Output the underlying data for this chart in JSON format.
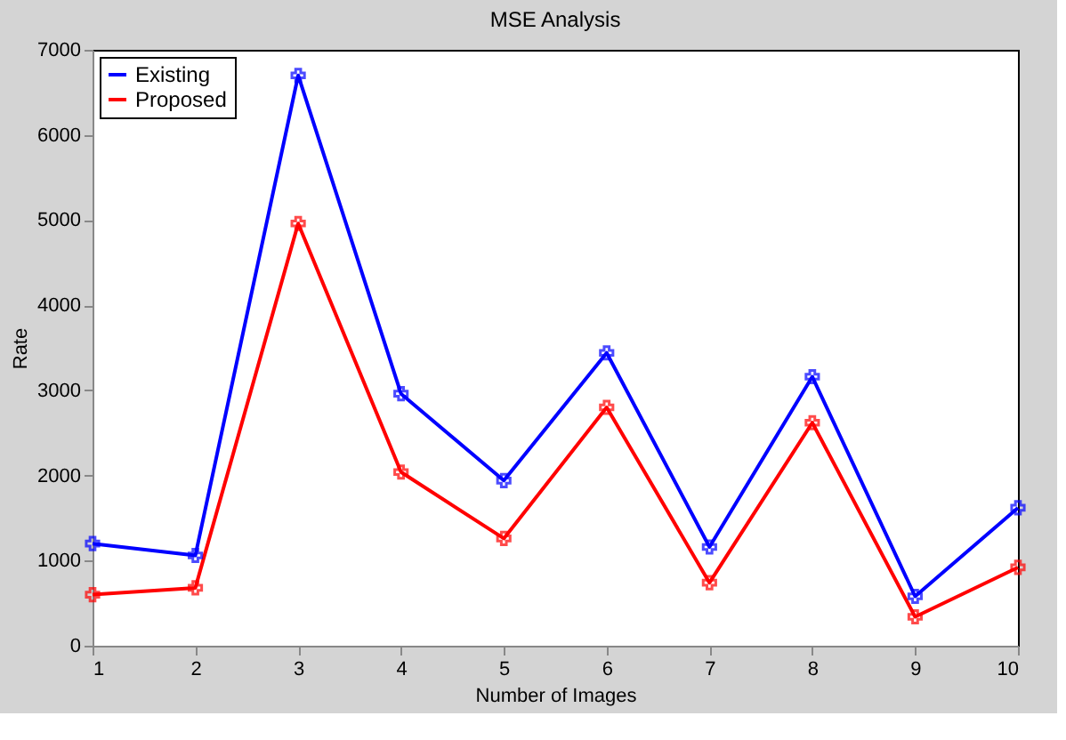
{
  "chart_data": {
    "type": "line",
    "title": "MSE Analysis",
    "xlabel": "Number of Images",
    "ylabel": "Rate",
    "x": [
      1,
      2,
      3,
      4,
      5,
      6,
      7,
      8,
      9,
      10
    ],
    "series": [
      {
        "name": "Existing",
        "color": "#0000ff",
        "values": [
          1200,
          1060,
          6700,
          2960,
          1940,
          3440,
          1160,
          3160,
          580,
          1620
        ]
      },
      {
        "name": "Proposed",
        "color": "#ff0000",
        "values": [
          600,
          680,
          4960,
          2040,
          1260,
          2800,
          740,
          2620,
          340,
          920
        ]
      }
    ],
    "xlim": [
      1,
      10
    ],
    "xticks": [
      1,
      2,
      3,
      4,
      5,
      6,
      7,
      8,
      9,
      10
    ],
    "ylim": [
      0,
      7000
    ],
    "yticks": [
      0,
      1000,
      2000,
      3000,
      4000,
      5000,
      6000,
      7000
    ],
    "grid": false,
    "legend": "top left",
    "marker": "cross",
    "line_style": "solid"
  }
}
